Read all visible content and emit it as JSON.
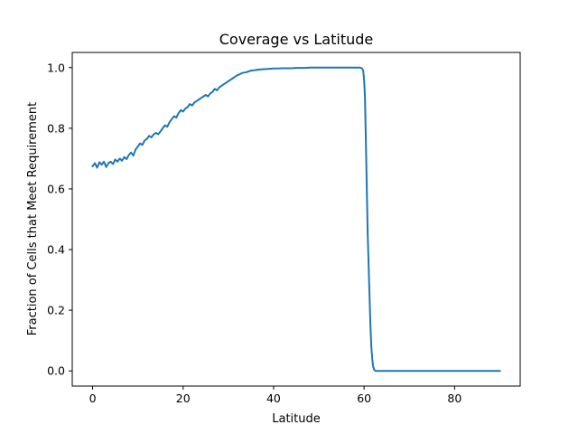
{
  "chart_data": {
    "type": "line",
    "title": "Coverage vs Latitude",
    "xlabel": "Latitude",
    "ylabel": "Fraction of Cells that Meet Requirement",
    "xlim": [
      -4.5,
      94.5
    ],
    "ylim": [
      -0.05,
      1.05
    ],
    "xticks": [
      0,
      20,
      40,
      60,
      80
    ],
    "xtick_labels": [
      "0",
      "20",
      "40",
      "60",
      "80"
    ],
    "yticks": [
      0.0,
      0.2,
      0.4,
      0.6,
      0.8,
      1.0
    ],
    "ytick_labels": [
      "0.0",
      "0.2",
      "0.4",
      "0.6",
      "0.8",
      "1.0"
    ],
    "grid": false,
    "colors": {
      "line": "#1f77b4",
      "axes": "#000000",
      "background": "#ffffff"
    },
    "series": [
      {
        "x": [
          0,
          0.5,
          1,
          1.5,
          2,
          2.5,
          3,
          3.5,
          4,
          4.5,
          5,
          5.5,
          6,
          6.5,
          7,
          7.5,
          8,
          8.5,
          9,
          9.5,
          10,
          10.5,
          11,
          11.5,
          12,
          12.5,
          13,
          13.5,
          14,
          14.5,
          15,
          15.5,
          16,
          16.5,
          17,
          17.5,
          18,
          18.5,
          19,
          19.5,
          20,
          20.5,
          21,
          21.5,
          22,
          22.5,
          23,
          23.5,
          24,
          24.5,
          25,
          25.5,
          26,
          26.5,
          27,
          27.5,
          28,
          28.5,
          29,
          29.5,
          30,
          30.5,
          31,
          31.5,
          32,
          32.5,
          33,
          34,
          35,
          36,
          37,
          38,
          39,
          40,
          41,
          42,
          43,
          44,
          45,
          46,
          47,
          48,
          50,
          52,
          54,
          56,
          58,
          59,
          59.5,
          59.8,
          60,
          60.2,
          60.4,
          60.6,
          60.8,
          61,
          61.2,
          61.4,
          61.6,
          61.8,
          62,
          62.2,
          62.4,
          62.6,
          62.8,
          63,
          65,
          70,
          75,
          80,
          85,
          90
        ],
        "y": [
          0.675,
          0.685,
          0.67,
          0.688,
          0.68,
          0.69,
          0.672,
          0.685,
          0.69,
          0.682,
          0.697,
          0.69,
          0.7,
          0.693,
          0.705,
          0.698,
          0.712,
          0.72,
          0.71,
          0.73,
          0.74,
          0.75,
          0.745,
          0.76,
          0.765,
          0.775,
          0.77,
          0.78,
          0.785,
          0.78,
          0.79,
          0.8,
          0.81,
          0.805,
          0.82,
          0.83,
          0.84,
          0.835,
          0.85,
          0.86,
          0.855,
          0.865,
          0.87,
          0.88,
          0.875,
          0.885,
          0.89,
          0.895,
          0.9,
          0.905,
          0.91,
          0.905,
          0.915,
          0.92,
          0.93,
          0.925,
          0.935,
          0.94,
          0.945,
          0.95,
          0.955,
          0.96,
          0.965,
          0.97,
          0.975,
          0.978,
          0.982,
          0.985,
          0.99,
          0.992,
          0.994,
          0.995,
          0.996,
          0.997,
          0.997,
          0.998,
          0.998,
          0.998,
          0.999,
          0.999,
          0.999,
          1.0,
          1.0,
          1.0,
          1.0,
          1.0,
          1.0,
          1.0,
          0.998,
          0.99,
          0.96,
          0.9,
          0.75,
          0.6,
          0.45,
          0.35,
          0.25,
          0.15,
          0.08,
          0.04,
          0.015,
          0.005,
          0.001,
          0.0,
          0.0,
          0.0,
          0.0,
          0.0,
          0.0,
          0.0,
          0.0,
          0.0
        ]
      }
    ]
  }
}
